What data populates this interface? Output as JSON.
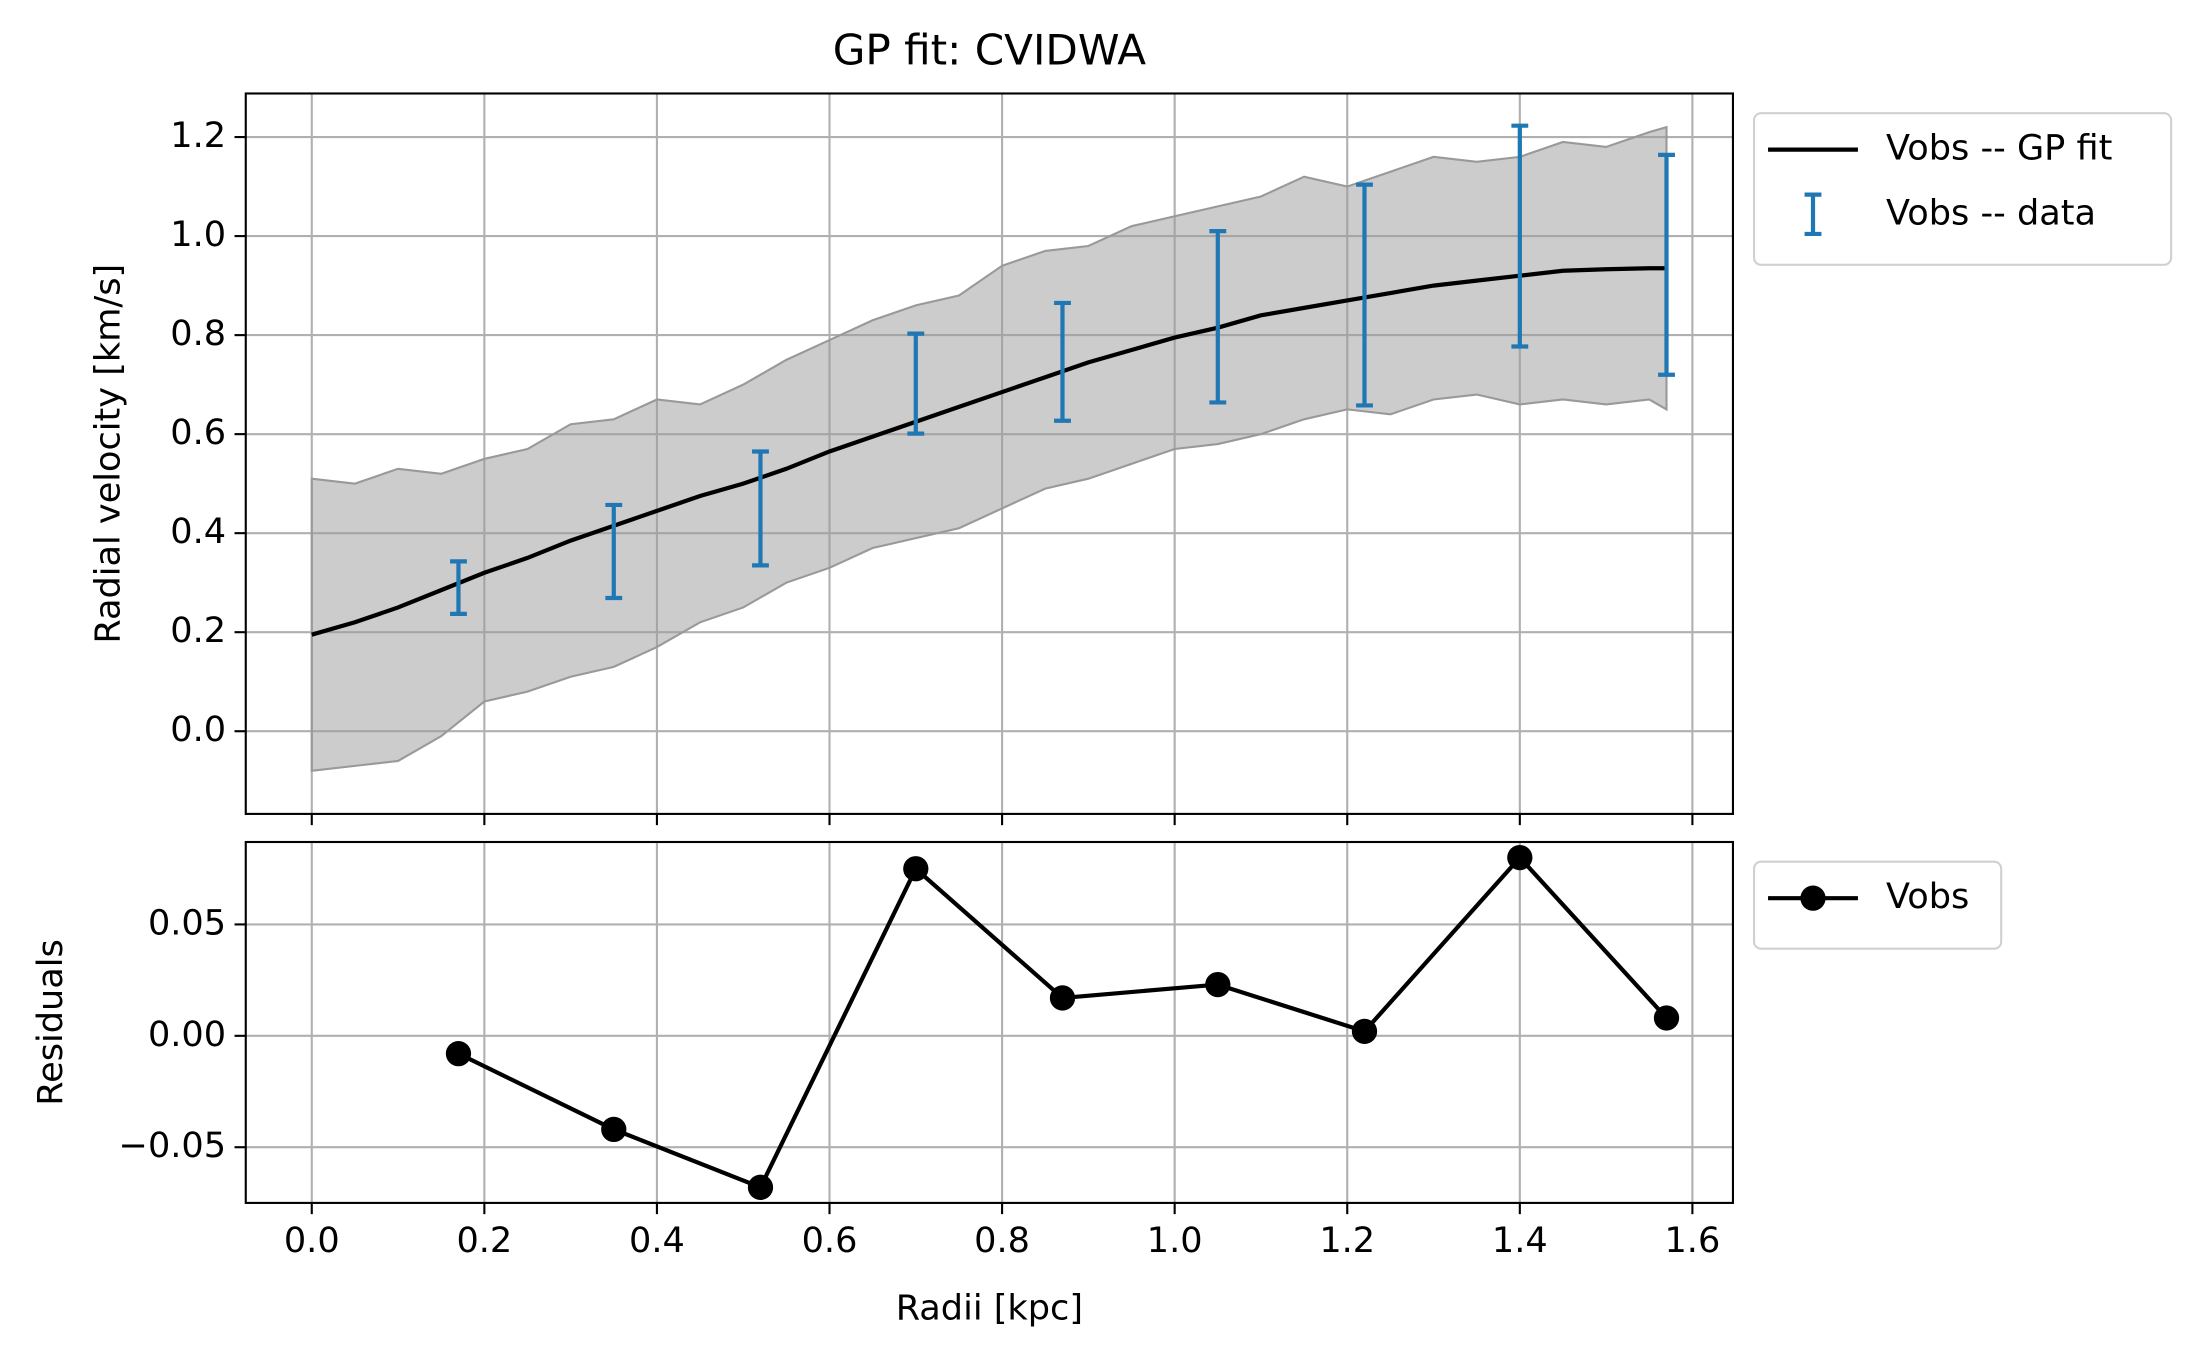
{
  "chart_data": [
    {
      "type": "line",
      "title": "GP fit: CVIDWA",
      "ylabel": "Radial velocity [km/s]",
      "xlim": [
        -0.0765,
        1.647
      ],
      "ylim": [
        -0.167,
        1.288
      ],
      "xticks": [
        0,
        0.2,
        0.4,
        0.6,
        0.8,
        1,
        1.2,
        1.4,
        1.6
      ],
      "show_xticklabels": false,
      "yticks": [
        {
          "value": 0,
          "label": "0.0"
        },
        0.2,
        0.4,
        0.6,
        0.8,
        {
          "value": 1,
          "label": "1.0"
        },
        1.2
      ],
      "grid": true,
      "legend": "outside-upper-right",
      "band": {
        "color": "#999999",
        "x": [
          0,
          0.05,
          0.1,
          0.15,
          0.2,
          0.25,
          0.3,
          0.35,
          0.4,
          0.45,
          0.5,
          0.55,
          0.6,
          0.65,
          0.7,
          0.75,
          0.8,
          0.85,
          0.9,
          0.95,
          1,
          1.05,
          1.1,
          1.15,
          1.2,
          1.25,
          1.3,
          1.35,
          1.4,
          1.45,
          1.5,
          1.55,
          1.57
        ],
        "upper": [
          0.51,
          0.5,
          0.53,
          0.52,
          0.55,
          0.57,
          0.62,
          0.63,
          0.67,
          0.66,
          0.7,
          0.75,
          0.79,
          0.83,
          0.86,
          0.88,
          0.94,
          0.97,
          0.98,
          1.02,
          1.04,
          1.06,
          1.08,
          1.12,
          1.1,
          1.13,
          1.16,
          1.15,
          1.16,
          1.19,
          1.18,
          1.21,
          1.22
        ],
        "lower": [
          -0.08,
          -0.07,
          -0.06,
          -0.01,
          0.06,
          0.08,
          0.11,
          0.13,
          0.17,
          0.22,
          0.25,
          0.3,
          0.33,
          0.37,
          0.39,
          0.41,
          0.45,
          0.49,
          0.51,
          0.54,
          0.57,
          0.58,
          0.6,
          0.63,
          0.65,
          0.64,
          0.67,
          0.68,
          0.66,
          0.67,
          0.66,
          0.67,
          0.65
        ]
      },
      "series": [
        {
          "name": "Vobs -- GP fit",
          "kind": "line",
          "color": "#000000",
          "x": [
            0,
            0.05,
            0.1,
            0.15,
            0.2,
            0.25,
            0.3,
            0.35,
            0.4,
            0.45,
            0.5,
            0.55,
            0.6,
            0.65,
            0.7,
            0.75,
            0.8,
            0.85,
            0.9,
            0.95,
            1,
            1.05,
            1.1,
            1.15,
            1.2,
            1.25,
            1.3,
            1.35,
            1.4,
            1.45,
            1.5,
            1.55,
            1.57
          ],
          "values": [
            0.195,
            0.22,
            0.25,
            0.285,
            0.32,
            0.35,
            0.385,
            0.415,
            0.445,
            0.475,
            0.5,
            0.53,
            0.565,
            0.595,
            0.625,
            0.655,
            0.685,
            0.715,
            0.745,
            0.77,
            0.795,
            0.815,
            0.84,
            0.855,
            0.87,
            0.885,
            0.9,
            0.91,
            0.92,
            0.93,
            0.933,
            0.935,
            0.935
          ]
        },
        {
          "name": "Vobs -- data",
          "kind": "errorbar",
          "color": "#1f77b4",
          "x": [
            0.17,
            0.35,
            0.52,
            0.7,
            0.87,
            1.05,
            1.22,
            1.4,
            1.57
          ],
          "values": [
            0.29,
            0.363,
            0.45,
            0.702,
            0.746,
            0.837,
            0.881,
            1.0,
            0.942
          ],
          "errors": [
            0.053,
            0.094,
            0.115,
            0.101,
            0.119,
            0.173,
            0.223,
            0.223,
            0.222
          ]
        }
      ]
    },
    {
      "type": "line",
      "xlabel": "Radii [kpc]",
      "ylabel": "Residuals",
      "xlim": [
        -0.0765,
        1.647
      ],
      "ylim": [
        -0.075,
        0.087
      ],
      "xticks": [
        {
          "value": 0,
          "label": "0.0"
        },
        0.2,
        0.4,
        0.6,
        0.8,
        {
          "value": 1,
          "label": "1.0"
        },
        1.2,
        1.4,
        1.6
      ],
      "show_xticklabels": true,
      "yticks": [
        {
          "value": -0.05,
          "label": "−0.05"
        },
        {
          "value": 0,
          "label": "0.00"
        },
        0.05
      ],
      "grid": true,
      "legend": "outside-upper-right",
      "series": [
        {
          "name": "Vobs",
          "kind": "line",
          "marker": "o",
          "color": "#000000",
          "x": [
            0.17,
            0.35,
            0.52,
            0.7,
            0.87,
            1.05,
            1.22,
            1.4,
            1.57
          ],
          "values": [
            -0.008,
            -0.042,
            -0.068,
            0.075,
            0.017,
            0.023,
            0.002,
            0.08,
            0.008
          ]
        }
      ]
    }
  ]
}
